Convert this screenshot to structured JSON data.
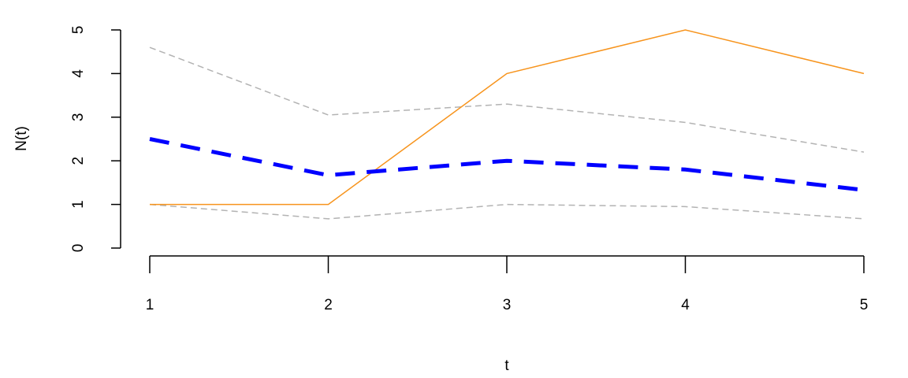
{
  "chart_data": {
    "type": "line",
    "xlabel": "t",
    "ylabel": "N(t)",
    "x": [
      1,
      2,
      3,
      4,
      5
    ],
    "series": [
      {
        "color": "#b3b3b3",
        "linestyle": "dashed",
        "linewidth": 1.5,
        "values": [
          4.6,
          3.05,
          3.3,
          2.88,
          2.2
        ]
      },
      {
        "color": "#b3b3b3",
        "linestyle": "dashed",
        "linewidth": 1.5,
        "values": [
          1.0,
          0.67,
          1.0,
          0.95,
          0.67
        ]
      },
      {
        "color": "#f7941d",
        "linestyle": "solid",
        "linewidth": 1.5,
        "values": [
          1,
          1,
          4,
          5,
          4
        ]
      },
      {
        "color": "#0000ff",
        "linestyle": "dashed",
        "linewidth": 5,
        "values": [
          2.5,
          1.67,
          2.0,
          1.8,
          1.33
        ]
      }
    ],
    "xlim": [
      1,
      5
    ],
    "xticks": [
      1,
      2,
      3,
      4,
      5
    ],
    "ylim": [
      0,
      5
    ],
    "yticks": [
      0,
      1,
      2,
      3,
      4,
      5
    ]
  }
}
